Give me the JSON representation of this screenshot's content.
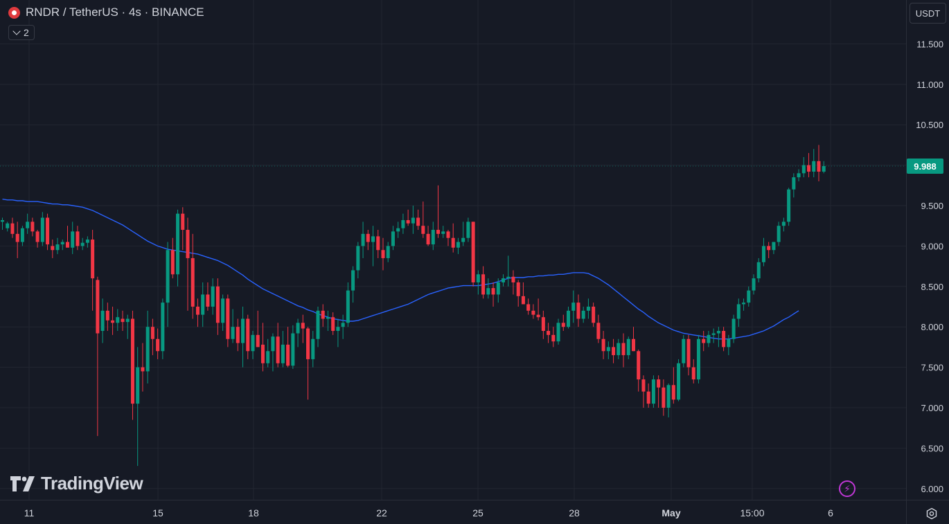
{
  "header": {
    "title": "RNDR / TetherUS · 4s · BINANCE",
    "indicator_count": "2",
    "currency": "USDT"
  },
  "last_price": {
    "label": "9.988",
    "value": 9.988,
    "color": "#089981"
  },
  "branding": {
    "logo_text": "TradingView"
  },
  "colors": {
    "background": "#161a25",
    "up": "#089981",
    "down": "#f23645",
    "ma_line": "#2962ff",
    "grid": "#222631"
  },
  "chart_data": {
    "type": "candlestick",
    "y_axis": {
      "range": [
        5.85,
        11.95
      ],
      "ticks": [
        11.5,
        11.0,
        10.5,
        10.0,
        9.5,
        9.0,
        8.5,
        8.0,
        7.5,
        7.0,
        6.5,
        6.0
      ],
      "tick_labels": [
        "11.500",
        "11.000",
        "10.500",
        "10.000",
        "9.500",
        "9.000",
        "8.500",
        "8.000",
        "7.500",
        "7.000",
        "6.500",
        "6.000"
      ],
      "hidden_tick_labels": [
        "10.000"
      ]
    },
    "x_axis": {
      "labels": [
        "11",
        "15",
        "18",
        "22",
        "25",
        "28",
        "May",
        "15:00",
        "6"
      ],
      "bold_labels": [
        "May"
      ]
    },
    "candles": [
      [
        9.3,
        9.35,
        9.2,
        9.32
      ],
      [
        9.22,
        9.3,
        9.18,
        9.28
      ],
      [
        9.28,
        9.35,
        9.1,
        9.15
      ],
      [
        9.15,
        9.3,
        8.85,
        9.05
      ],
      [
        9.05,
        9.25,
        9.0,
        9.22
      ],
      [
        9.22,
        9.4,
        9.15,
        9.3
      ],
      [
        9.3,
        9.35,
        9.12,
        9.18
      ],
      [
        9.18,
        9.2,
        8.98,
        9.05
      ],
      [
        9.05,
        9.42,
        9.0,
        9.35
      ],
      [
        9.35,
        9.4,
        8.95,
        9.02
      ],
      [
        9.0,
        9.08,
        8.85,
        8.95
      ],
      [
        8.95,
        9.1,
        8.9,
        9.02
      ],
      [
        9.02,
        9.08,
        8.95,
        9.05
      ],
      [
        9.05,
        9.25,
        9.0,
        8.98
      ],
      [
        8.98,
        9.3,
        8.9,
        9.18
      ],
      [
        9.18,
        9.25,
        8.95,
        9.0
      ],
      [
        9.0,
        9.1,
        8.95,
        9.04
      ],
      [
        9.04,
        9.12,
        8.98,
        9.08
      ],
      [
        9.08,
        9.2,
        8.2,
        8.6
      ],
      [
        8.58,
        8.62,
        6.65,
        7.92
      ],
      [
        7.95,
        8.35,
        7.8,
        8.2
      ],
      [
        8.2,
        8.3,
        7.95,
        8.08
      ],
      [
        8.08,
        8.25,
        7.9,
        8.05
      ],
      [
        8.05,
        8.22,
        7.95,
        8.12
      ],
      [
        8.1,
        8.2,
        7.95,
        8.06
      ],
      [
        8.06,
        8.15,
        7.85,
        8.1
      ],
      [
        8.1,
        8.2,
        6.85,
        7.05
      ],
      [
        7.05,
        7.75,
        6.28,
        7.5
      ],
      [
        7.5,
        7.8,
        7.2,
        7.45
      ],
      [
        7.45,
        8.2,
        7.3,
        8.0
      ],
      [
        8.0,
        8.1,
        7.65,
        7.85
      ],
      [
        7.85,
        7.98,
        7.6,
        7.7
      ],
      [
        7.7,
        8.35,
        7.6,
        8.3
      ],
      [
        8.3,
        9.05,
        8.0,
        8.95
      ],
      [
        8.95,
        9.1,
        8.6,
        8.65
      ],
      [
        8.65,
        9.45,
        8.5,
        9.4
      ],
      [
        9.4,
        9.48,
        8.95,
        9.2
      ],
      [
        9.2,
        9.35,
        8.2,
        8.85
      ],
      [
        8.85,
        9.15,
        8.1,
        8.25
      ],
      [
        8.25,
        8.35,
        8.0,
        8.15
      ],
      [
        8.15,
        8.55,
        8.0,
        8.4
      ],
      [
        8.4,
        8.55,
        8.2,
        8.25
      ],
      [
        8.25,
        8.6,
        8.15,
        8.5
      ],
      [
        8.5,
        8.6,
        7.9,
        8.05
      ],
      [
        8.05,
        8.4,
        7.95,
        8.35
      ],
      [
        8.35,
        8.4,
        7.75,
        7.85
      ],
      [
        7.85,
        8.22,
        7.8,
        8.0
      ],
      [
        8.0,
        8.1,
        7.7,
        7.8
      ],
      [
        7.8,
        8.25,
        7.5,
        8.1
      ],
      [
        8.1,
        8.15,
        7.6,
        7.7
      ],
      [
        7.7,
        7.95,
        7.6,
        7.9
      ],
      [
        7.9,
        8.2,
        7.75,
        7.75
      ],
      [
        7.78,
        8.05,
        7.45,
        7.55
      ],
      [
        7.55,
        7.85,
        7.5,
        7.7
      ],
      [
        7.7,
        7.92,
        7.45,
        7.88
      ],
      [
        7.88,
        8.05,
        7.5,
        7.55
      ],
      [
        7.55,
        7.95,
        7.5,
        7.78
      ],
      [
        7.78,
        8.0,
        7.5,
        7.52
      ],
      [
        7.52,
        8.02,
        7.48,
        7.92
      ],
      [
        7.92,
        8.1,
        7.75,
        8.05
      ],
      [
        8.05,
        8.15,
        7.8,
        7.98
      ],
      [
        7.98,
        8.0,
        7.1,
        7.6
      ],
      [
        7.6,
        7.95,
        7.5,
        7.85
      ],
      [
        7.85,
        8.25,
        7.75,
        8.2
      ],
      [
        8.2,
        8.28,
        8.0,
        8.1
      ],
      [
        8.1,
        8.2,
        7.95,
        8.12
      ],
      [
        8.12,
        8.18,
        7.9,
        7.95
      ],
      [
        7.95,
        8.1,
        7.75,
        8.0
      ],
      [
        8.0,
        8.15,
        7.85,
        8.05
      ],
      [
        8.05,
        8.55,
        8.0,
        8.45
      ],
      [
        8.45,
        8.75,
        8.3,
        8.7
      ],
      [
        8.7,
        9.05,
        8.6,
        9.0
      ],
      [
        9.0,
        9.3,
        8.85,
        9.15
      ],
      [
        9.15,
        9.2,
        8.95,
        9.05
      ],
      [
        9.05,
        9.25,
        8.75,
        9.12
      ],
      [
        9.12,
        9.2,
        8.85,
        8.95
      ],
      [
        8.95,
        9.1,
        8.7,
        8.85
      ],
      [
        8.85,
        9.05,
        8.8,
        9.0
      ],
      [
        9.0,
        9.25,
        8.95,
        9.18
      ],
      [
        9.18,
        9.3,
        9.1,
        9.22
      ],
      [
        9.22,
        9.4,
        9.15,
        9.32
      ],
      [
        9.32,
        9.45,
        9.25,
        9.28
      ],
      [
        9.28,
        9.5,
        9.15,
        9.35
      ],
      [
        9.35,
        9.45,
        9.2,
        9.25
      ],
      [
        9.25,
        9.55,
        9.1,
        9.15
      ],
      [
        9.15,
        9.25,
        9.0,
        9.02
      ],
      [
        9.02,
        9.3,
        8.95,
        9.2
      ],
      [
        9.2,
        9.75,
        9.1,
        9.15
      ],
      [
        9.15,
        9.25,
        9.1,
        9.18
      ],
      [
        9.18,
        9.2,
        9.0,
        9.1
      ],
      [
        9.1,
        9.28,
        8.92,
        8.98
      ],
      [
        8.98,
        9.1,
        8.9,
        9.05
      ],
      [
        9.05,
        9.3,
        9.0,
        9.1
      ],
      [
        9.1,
        9.35,
        9.05,
        9.3
      ],
      [
        9.3,
        9.3,
        8.5,
        8.55
      ],
      [
        8.55,
        8.7,
        8.4,
        8.65
      ],
      [
        8.65,
        8.75,
        8.35,
        8.4
      ],
      [
        8.4,
        8.6,
        8.35,
        8.48
      ],
      [
        8.48,
        8.55,
        8.25,
        8.4
      ],
      [
        8.4,
        8.6,
        8.3,
        8.55
      ],
      [
        8.55,
        8.65,
        8.5,
        8.6
      ],
      [
        8.6,
        8.88,
        8.5,
        8.62
      ],
      [
        8.62,
        8.7,
        8.4,
        8.55
      ],
      [
        8.55,
        8.58,
        8.25,
        8.38
      ],
      [
        8.38,
        8.55,
        8.3,
        8.28
      ],
      [
        8.28,
        8.35,
        8.15,
        8.2
      ],
      [
        8.2,
        8.28,
        8.1,
        8.15
      ],
      [
        8.15,
        8.35,
        8.08,
        8.12
      ],
      [
        8.12,
        8.2,
        7.85,
        7.95
      ],
      [
        7.95,
        8.05,
        7.8,
        7.9
      ],
      [
        7.9,
        8.0,
        7.75,
        7.82
      ],
      [
        7.82,
        8.1,
        7.78,
        8.05
      ],
      [
        8.05,
        8.15,
        7.95,
        8.0
      ],
      [
        8.0,
        8.25,
        7.98,
        8.2
      ],
      [
        8.2,
        8.45,
        8.05,
        8.3
      ],
      [
        8.3,
        8.4,
        8.0,
        8.1
      ],
      [
        8.1,
        8.25,
        8.05,
        8.2
      ],
      [
        8.2,
        8.35,
        8.1,
        8.25
      ],
      [
        8.25,
        8.3,
        8.0,
        8.05
      ],
      [
        8.05,
        8.15,
        7.8,
        7.85
      ],
      [
        7.85,
        7.95,
        7.6,
        7.7
      ],
      [
        7.7,
        7.82,
        7.6,
        7.75
      ],
      [
        7.75,
        7.85,
        7.55,
        7.65
      ],
      [
        7.65,
        7.85,
        7.6,
        7.8
      ],
      [
        7.8,
        7.92,
        7.5,
        7.65
      ],
      [
        7.65,
        7.88,
        7.6,
        7.85
      ],
      [
        7.85,
        8.0,
        7.7,
        7.7
      ],
      [
        7.7,
        7.72,
        7.2,
        7.35
      ],
      [
        7.35,
        7.4,
        7.0,
        7.2
      ],
      [
        7.2,
        7.3,
        7.0,
        7.05
      ],
      [
        7.05,
        7.4,
        7.0,
        7.35
      ],
      [
        7.35,
        7.4,
        7.0,
        7.25
      ],
      [
        7.25,
        7.35,
        6.9,
        7.0
      ],
      [
        7.0,
        7.3,
        6.88,
        7.28
      ],
      [
        7.28,
        7.5,
        7.05,
        7.1
      ],
      [
        7.1,
        7.6,
        7.08,
        7.55
      ],
      [
        7.55,
        7.9,
        7.5,
        7.85
      ],
      [
        7.85,
        7.9,
        7.4,
        7.5
      ],
      [
        7.5,
        7.6,
        7.3,
        7.35
      ],
      [
        7.35,
        7.9,
        7.3,
        7.85
      ],
      [
        7.85,
        7.95,
        7.7,
        7.8
      ],
      [
        7.8,
        7.95,
        7.75,
        7.9
      ],
      [
        7.9,
        7.98,
        7.8,
        7.92
      ],
      [
        7.92,
        8.0,
        7.75,
        7.95
      ],
      [
        7.95,
        8.0,
        7.7,
        7.75
      ],
      [
        7.75,
        7.9,
        7.65,
        7.85
      ],
      [
        7.85,
        8.15,
        7.8,
        8.1
      ],
      [
        8.1,
        8.35,
        8.0,
        8.28
      ],
      [
        8.28,
        8.35,
        8.2,
        8.3
      ],
      [
        8.3,
        8.5,
        8.25,
        8.45
      ],
      [
        8.45,
        8.65,
        8.4,
        8.6
      ],
      [
        8.6,
        8.85,
        8.55,
        8.8
      ],
      [
        8.8,
        9.1,
        8.75,
        9.0
      ],
      [
        9.0,
        9.05,
        8.85,
        8.95
      ],
      [
        8.95,
        9.05,
        8.9,
        9.05
      ],
      [
        9.05,
        9.3,
        9.0,
        9.25
      ],
      [
        9.25,
        9.35,
        9.18,
        9.3
      ],
      [
        9.3,
        9.72,
        9.25,
        9.7
      ],
      [
        9.7,
        9.9,
        9.6,
        9.85
      ],
      [
        9.85,
        9.95,
        9.8,
        9.9
      ],
      [
        9.9,
        10.1,
        9.85,
        10.0
      ],
      [
        10.0,
        10.15,
        9.85,
        9.92
      ],
      [
        9.92,
        10.2,
        9.85,
        10.05
      ],
      [
        10.05,
        10.25,
        9.8,
        9.92
      ],
      [
        9.92,
        10.05,
        9.9,
        9.988
      ]
    ],
    "moving_average": {
      "values": [
        9.58,
        9.57,
        9.57,
        9.56,
        9.56,
        9.55,
        9.55,
        9.55,
        9.54,
        9.53,
        9.52,
        9.52,
        9.51,
        9.51,
        9.5,
        9.49,
        9.48,
        9.46,
        9.44,
        9.41,
        9.38,
        9.35,
        9.32,
        9.29,
        9.26,
        9.22,
        9.18,
        9.14,
        9.1,
        9.06,
        9.03,
        9.0,
        8.98,
        8.96,
        8.95,
        8.94,
        8.93,
        8.92,
        8.91,
        8.9,
        8.88,
        8.86,
        8.84,
        8.82,
        8.79,
        8.76,
        8.72,
        8.68,
        8.64,
        8.59,
        8.55,
        8.51,
        8.47,
        8.44,
        8.41,
        8.38,
        8.35,
        8.32,
        8.29,
        8.26,
        8.24,
        8.21,
        8.19,
        8.16,
        8.14,
        8.12,
        8.1,
        8.09,
        8.08,
        8.07,
        8.07,
        8.08,
        8.1,
        8.12,
        8.14,
        8.16,
        8.18,
        8.2,
        8.22,
        8.24,
        8.26,
        8.28,
        8.31,
        8.34,
        8.37,
        8.4,
        8.42,
        8.44,
        8.46,
        8.48,
        8.49,
        8.5,
        8.51,
        8.51,
        8.51,
        8.51,
        8.52,
        8.53,
        8.54,
        8.56,
        8.58,
        8.6,
        8.61,
        8.61,
        8.61,
        8.62,
        8.62,
        8.63,
        8.63,
        8.64,
        8.64,
        8.65,
        8.65,
        8.66,
        8.67,
        8.67,
        8.67,
        8.66,
        8.63,
        8.6,
        8.56,
        8.52,
        8.47,
        8.42,
        8.37,
        8.32,
        8.27,
        8.22,
        8.18,
        8.13,
        8.09,
        8.05,
        8.02,
        7.99,
        7.96,
        7.94,
        7.92,
        7.91,
        7.9,
        7.89,
        7.88,
        7.87,
        7.86,
        7.85,
        7.85,
        7.85,
        7.86,
        7.87,
        7.88,
        7.89,
        7.91,
        7.93,
        7.95,
        7.98,
        8.01,
        8.05,
        8.09,
        8.12,
        8.16,
        8.2
      ]
    }
  }
}
